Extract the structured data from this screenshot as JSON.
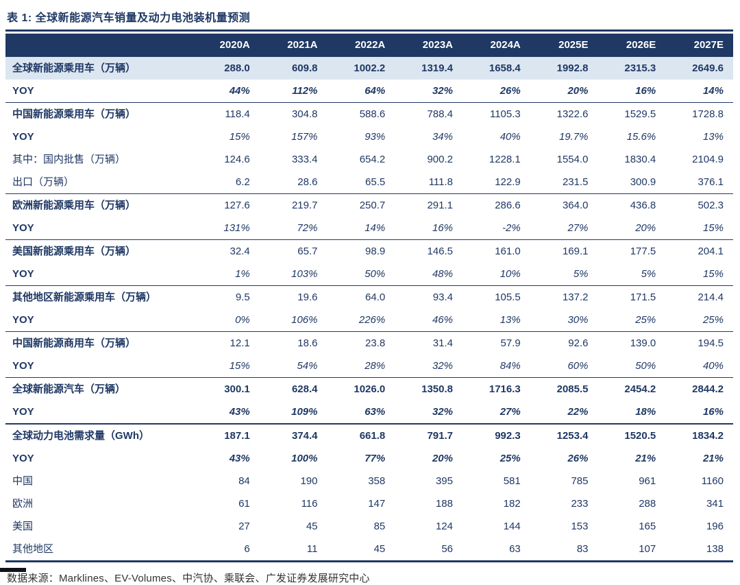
{
  "page": {
    "title": "表 1:  全球新能源汽车销量及动力电池装机量预测",
    "source": "数据来源：Marklines、EV-Volumes、中汽协、乘联会、广发证券发展研究中心"
  },
  "colors": {
    "header_bg": "#1F3864",
    "text_navy": "#1F3864",
    "shaded_row_bg": "#DCE6F1"
  },
  "table": {
    "columns": [
      "2020A",
      "2021A",
      "2022A",
      "2023A",
      "2024A",
      "2025E",
      "2026E",
      "2027E"
    ],
    "rows": [
      {
        "label": "全球新能源乘用车（万辆）",
        "style": "total",
        "shaded": true,
        "values": [
          "288.0",
          "609.8",
          "1002.2",
          "1319.4",
          "1658.4",
          "1992.8",
          "2315.3",
          "2649.6"
        ]
      },
      {
        "label": "YOY",
        "style": "yoy-strong",
        "values": [
          "44%",
          "112%",
          "64%",
          "32%",
          "26%",
          "20%",
          "16%",
          "14%"
        ]
      },
      {
        "label": "中国新能源乘用车（万辆）",
        "style": "section",
        "rule": "thin",
        "values": [
          "118.4",
          "304.8",
          "588.6",
          "788.4",
          "1105.3",
          "1322.6",
          "1529.5",
          "1728.8"
        ]
      },
      {
        "label": "YOY",
        "style": "yoy",
        "values": [
          "15%",
          "157%",
          "93%",
          "34%",
          "40%",
          "19.7%",
          "15.6%",
          "13%"
        ]
      },
      {
        "label": "其中：国内批售（万辆）",
        "style": "sub",
        "values": [
          "124.6",
          "333.4",
          "654.2",
          "900.2",
          "1228.1",
          "1554.0",
          "1830.4",
          "2104.9"
        ]
      },
      {
        "label": "出口（万辆）",
        "style": "sub",
        "values": [
          "6.2",
          "28.6",
          "65.5",
          "111.8",
          "122.9",
          "231.5",
          "300.9",
          "376.1"
        ]
      },
      {
        "label": "欧洲新能源乘用车（万辆）",
        "style": "section",
        "rule": "thin",
        "values": [
          "127.6",
          "219.7",
          "250.7",
          "291.1",
          "286.6",
          "364.0",
          "436.8",
          "502.3"
        ]
      },
      {
        "label": "YOY",
        "style": "yoy",
        "values": [
          "131%",
          "72%",
          "14%",
          "16%",
          "-2%",
          "27%",
          "20%",
          "15%"
        ]
      },
      {
        "label": "美国新能源乘用车（万辆）",
        "style": "section",
        "rule": "thin",
        "values": [
          "32.4",
          "65.7",
          "98.9",
          "146.5",
          "161.0",
          "169.1",
          "177.5",
          "204.1"
        ]
      },
      {
        "label": "YOY",
        "style": "yoy",
        "values": [
          "1%",
          "103%",
          "50%",
          "48%",
          "10%",
          "5%",
          "5%",
          "15%"
        ]
      },
      {
        "label": "其他地区新能源乘用车（万辆）",
        "style": "section",
        "rule": "thin",
        "values": [
          "9.5",
          "19.6",
          "64.0",
          "93.4",
          "105.5",
          "137.2",
          "171.5",
          "214.4"
        ]
      },
      {
        "label": "YOY",
        "style": "yoy",
        "values": [
          "0%",
          "106%",
          "226%",
          "46%",
          "13%",
          "30%",
          "25%",
          "25%"
        ]
      },
      {
        "label": "中国新能源商用车（万辆）",
        "style": "section",
        "rule": "thin",
        "values": [
          "12.1",
          "18.6",
          "23.8",
          "31.4",
          "57.9",
          "92.6",
          "139.0",
          "194.5"
        ]
      },
      {
        "label": "YOY",
        "style": "yoy",
        "values": [
          "15%",
          "54%",
          "28%",
          "32%",
          "84%",
          "60%",
          "50%",
          "40%"
        ]
      },
      {
        "label": "全球新能源汽车（万辆）",
        "style": "total",
        "rule": "thin",
        "values": [
          "300.1",
          "628.4",
          "1026.0",
          "1350.8",
          "1716.3",
          "2085.5",
          "2454.2",
          "2844.2"
        ]
      },
      {
        "label": "YOY",
        "style": "yoy-strong",
        "values": [
          "43%",
          "109%",
          "63%",
          "32%",
          "27%",
          "22%",
          "18%",
          "16%"
        ]
      },
      {
        "label": "全球动力电池需求量（GWh）",
        "style": "total",
        "rule": "thick",
        "values": [
          "187.1",
          "374.4",
          "661.8",
          "791.7",
          "992.3",
          "1253.4",
          "1520.5",
          "1834.2"
        ]
      },
      {
        "label": "YOY",
        "style": "yoy-strong",
        "values": [
          "43%",
          "100%",
          "77%",
          "20%",
          "25%",
          "26%",
          "21%",
          "21%"
        ]
      },
      {
        "label": "中国",
        "style": "plain",
        "values": [
          "84",
          "190",
          "358",
          "395",
          "581",
          "785",
          "961",
          "1160"
        ]
      },
      {
        "label": "欧洲",
        "style": "plain",
        "values": [
          "61",
          "116",
          "147",
          "188",
          "182",
          "233",
          "288",
          "341"
        ]
      },
      {
        "label": "美国",
        "style": "plain",
        "values": [
          "27",
          "45",
          "85",
          "124",
          "144",
          "153",
          "165",
          "196"
        ]
      },
      {
        "label": "其他地区",
        "style": "plain",
        "values": [
          "6",
          "11",
          "45",
          "56",
          "63",
          "83",
          "107",
          "138"
        ]
      }
    ]
  }
}
